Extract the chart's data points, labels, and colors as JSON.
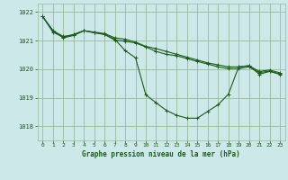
{
  "background_color": "#cce8e8",
  "grid_color": "#99bb99",
  "line_color": "#1a5c1a",
  "title": "Graphe pression niveau de la mer (hPa)",
  "title_color": "#1a5c1a",
  "xlim": [
    -0.5,
    23.5
  ],
  "ylim": [
    1017.5,
    1022.3
  ],
  "xticks": [
    0,
    1,
    2,
    3,
    4,
    5,
    6,
    7,
    8,
    9,
    10,
    11,
    12,
    13,
    14,
    15,
    16,
    17,
    18,
    19,
    20,
    21,
    22,
    23
  ],
  "yticks": [
    1018,
    1019,
    1020,
    1021,
    1022
  ],
  "series1": [
    1021.85,
    1021.35,
    1021.15,
    1021.2,
    1021.35,
    1021.3,
    1021.25,
    1021.1,
    1021.05,
    1020.95,
    1020.8,
    1020.72,
    1020.62,
    1020.52,
    1020.42,
    1020.32,
    1020.22,
    1020.15,
    1020.08,
    1020.08,
    1020.12,
    1019.92,
    1019.97,
    1019.87
  ],
  "series2": [
    1021.85,
    1021.35,
    1021.1,
    1021.18,
    1021.35,
    1021.28,
    1021.22,
    1021.05,
    1020.65,
    1020.4,
    1019.1,
    1018.82,
    1018.55,
    1018.38,
    1018.28,
    1018.28,
    1018.52,
    1018.75,
    1019.12,
    1020.08,
    1020.12,
    1019.82,
    1019.92,
    1019.82
  ],
  "series3": [
    1021.85,
    1021.3,
    1021.12,
    1021.22,
    1021.35,
    1021.28,
    1021.22,
    1021.02,
    1020.98,
    1020.92,
    1020.78,
    1020.62,
    1020.52,
    1020.47,
    1020.37,
    1020.27,
    1020.18,
    1020.08,
    1020.02,
    1020.02,
    1020.08,
    1019.88,
    1019.93,
    1019.83
  ]
}
